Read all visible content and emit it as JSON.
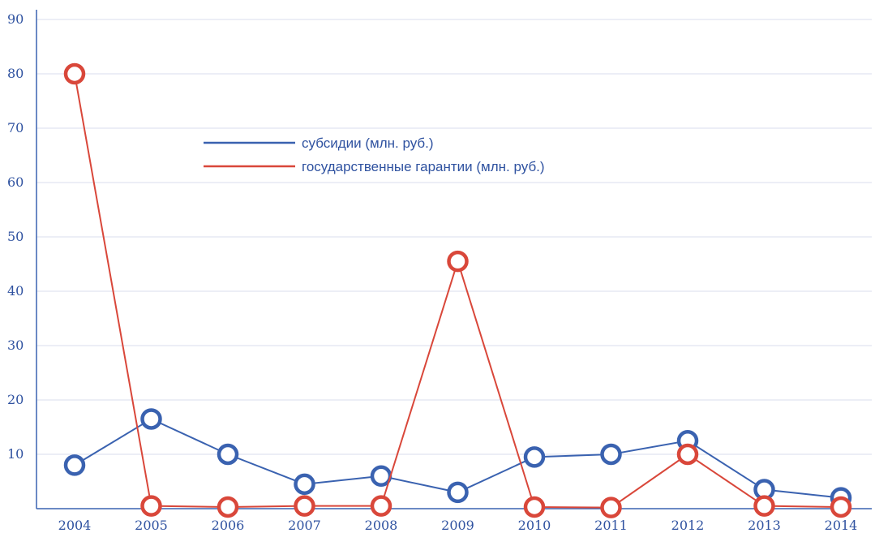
{
  "chart_data": {
    "type": "line",
    "categories": [
      "2004",
      "2005",
      "2006",
      "2007",
      "2008",
      "2009",
      "2010",
      "2011",
      "2012",
      "2013",
      "2014"
    ],
    "series": [
      {
        "name": "субсидии (млн. руб.)",
        "color": "#3a62b0",
        "values": [
          8.0,
          16.5,
          10.0,
          4.5,
          6.0,
          3.0,
          9.5,
          10.0,
          12.5,
          3.5,
          2.0
        ]
      },
      {
        "name": "государственные гарантии (млн. руб.)",
        "color": "#d9473a",
        "values": [
          80.0,
          0.5,
          0.3,
          0.5,
          0.5,
          45.5,
          0.3,
          0.2,
          10.0,
          0.5,
          0.3
        ]
      }
    ],
    "ylim": [
      0,
      90
    ],
    "yticks": [
      "10",
      "20",
      "30",
      "40",
      "50",
      "60",
      "70",
      "80",
      "90"
    ],
    "grid": true,
    "legend": "top-center",
    "colors": {
      "axis": "#3a62b0",
      "tick": "#2f52a0",
      "grid": "#d8deee"
    }
  }
}
